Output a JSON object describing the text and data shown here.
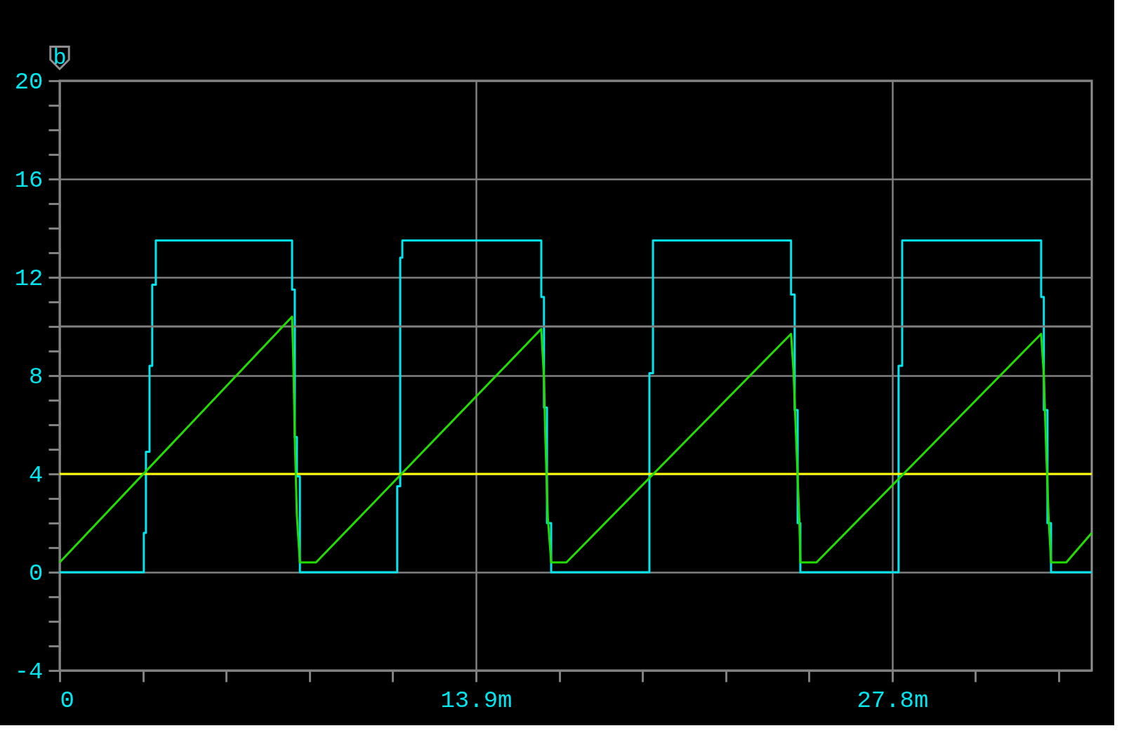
{
  "chart_data": {
    "type": "line",
    "xlim": [
      0,
      34.46
    ],
    "ylim": [
      -4,
      20
    ],
    "xticks": [
      0,
      {
        "value": 2.78,
        "label": null
      },
      {
        "value": 5.56,
        "label": null
      },
      {
        "value": 8.34,
        "label": null
      },
      {
        "value": 11.12,
        "label": null
      },
      {
        "value": 13.9,
        "label": "13.9m"
      },
      {
        "value": 16.68,
        "label": null
      },
      {
        "value": 19.46,
        "label": null
      },
      {
        "value": 22.24,
        "label": null
      },
      {
        "value": 25.02,
        "label": null
      },
      {
        "value": 27.8,
        "label": "27.8m"
      },
      {
        "value": 30.58,
        "label": null
      },
      {
        "value": 33.36,
        "label": null
      }
    ],
    "yticks": [
      -4,
      {
        "value": -3,
        "label": null
      },
      {
        "value": -2,
        "label": null
      },
      {
        "value": -1,
        "label": null
      },
      0,
      {
        "value": 1,
        "label": null
      },
      {
        "value": 2,
        "label": null
      },
      {
        "value": 3,
        "label": null
      },
      4,
      {
        "value": 5,
        "label": null
      },
      {
        "value": 6,
        "label": null
      },
      {
        "value": 7,
        "label": null
      },
      8,
      {
        "value": 9,
        "label": null
      },
      {
        "value": 10,
        "label": null
      },
      {
        "value": 11,
        "label": null
      },
      12,
      {
        "value": 13,
        "label": null
      },
      {
        "value": 14,
        "label": null
      },
      {
        "value": 15,
        "label": null
      },
      16,
      {
        "value": 17,
        "label": null
      },
      {
        "value": 18,
        "label": null
      },
      {
        "value": 19,
        "label": null
      },
      20
    ],
    "grid": true,
    "marker": "none",
    "line_style": "solid",
    "annotations": [
      "b"
    ],
    "ref_lines": [
      {
        "axis": "y",
        "value": 4,
        "label": null,
        "color": "#ffff00",
        "line_style": "solid"
      },
      {
        "axis": "y",
        "value": 10,
        "label": null,
        "color": "#808080",
        "line_style": "solid"
      }
    ],
    "series": [
      {
        "color": "#00e5ee",
        "x": [
          0,
          2.81,
          2.81,
          2.88,
          2.88,
          3.0,
          3.0,
          3.09,
          3.09,
          3.21,
          3.21,
          7.76,
          7.76,
          7.85,
          7.85,
          7.92,
          7.92,
          8.02,
          8.02,
          11.27,
          11.27,
          11.37,
          11.37,
          11.44,
          11.44,
          16.08,
          16.08,
          16.17,
          16.17,
          16.27,
          16.27,
          16.41,
          16.41,
          19.69,
          19.69,
          19.81,
          19.81,
          24.42,
          24.42,
          24.54,
          24.54,
          24.64,
          24.64,
          24.73,
          24.73,
          28.01,
          28.01,
          28.13,
          28.13,
          32.77,
          32.77,
          32.86,
          32.86,
          32.98,
          32.98,
          33.1,
          33.1,
          34.46
        ],
        "values": [
          0,
          0,
          1.6,
          1.6,
          4.9,
          4.9,
          8.4,
          8.4,
          11.7,
          11.7,
          13.5,
          13.5,
          11.5,
          11.5,
          5.5,
          5.5,
          3.9,
          3.9,
          0,
          0,
          3.5,
          3.5,
          12.8,
          12.8,
          13.5,
          13.5,
          11.2,
          11.2,
          6.7,
          6.7,
          2.0,
          2.0,
          0,
          0,
          8.1,
          8.1,
          13.5,
          13.5,
          11.3,
          11.3,
          6.6,
          6.6,
          2.0,
          2.0,
          0,
          0,
          8.4,
          8.4,
          13.5,
          13.5,
          11.2,
          11.2,
          6.6,
          6.6,
          2.0,
          2.0,
          0,
          0
        ]
      },
      {
        "color": "#22dd00",
        "x": [
          0,
          7.76,
          7.8,
          7.85,
          7.92,
          8.02,
          8.56,
          16.08,
          16.17,
          16.22,
          16.3,
          16.41,
          16.92,
          24.42,
          24.5,
          24.6,
          24.7,
          24.73,
          25.27,
          32.77,
          32.86,
          32.94,
          33.02,
          33.1,
          33.61,
          34.46
        ],
        "values": [
          0.4,
          10.4,
          8.7,
          5.5,
          2.3,
          0.4,
          0.4,
          9.9,
          7.9,
          5.3,
          2.2,
          0.4,
          0.4,
          9.7,
          8.2,
          5.1,
          2.0,
          0.4,
          0.4,
          9.7,
          8.0,
          4.9,
          2.2,
          0.4,
          0.4,
          1.6
        ]
      }
    ]
  }
}
